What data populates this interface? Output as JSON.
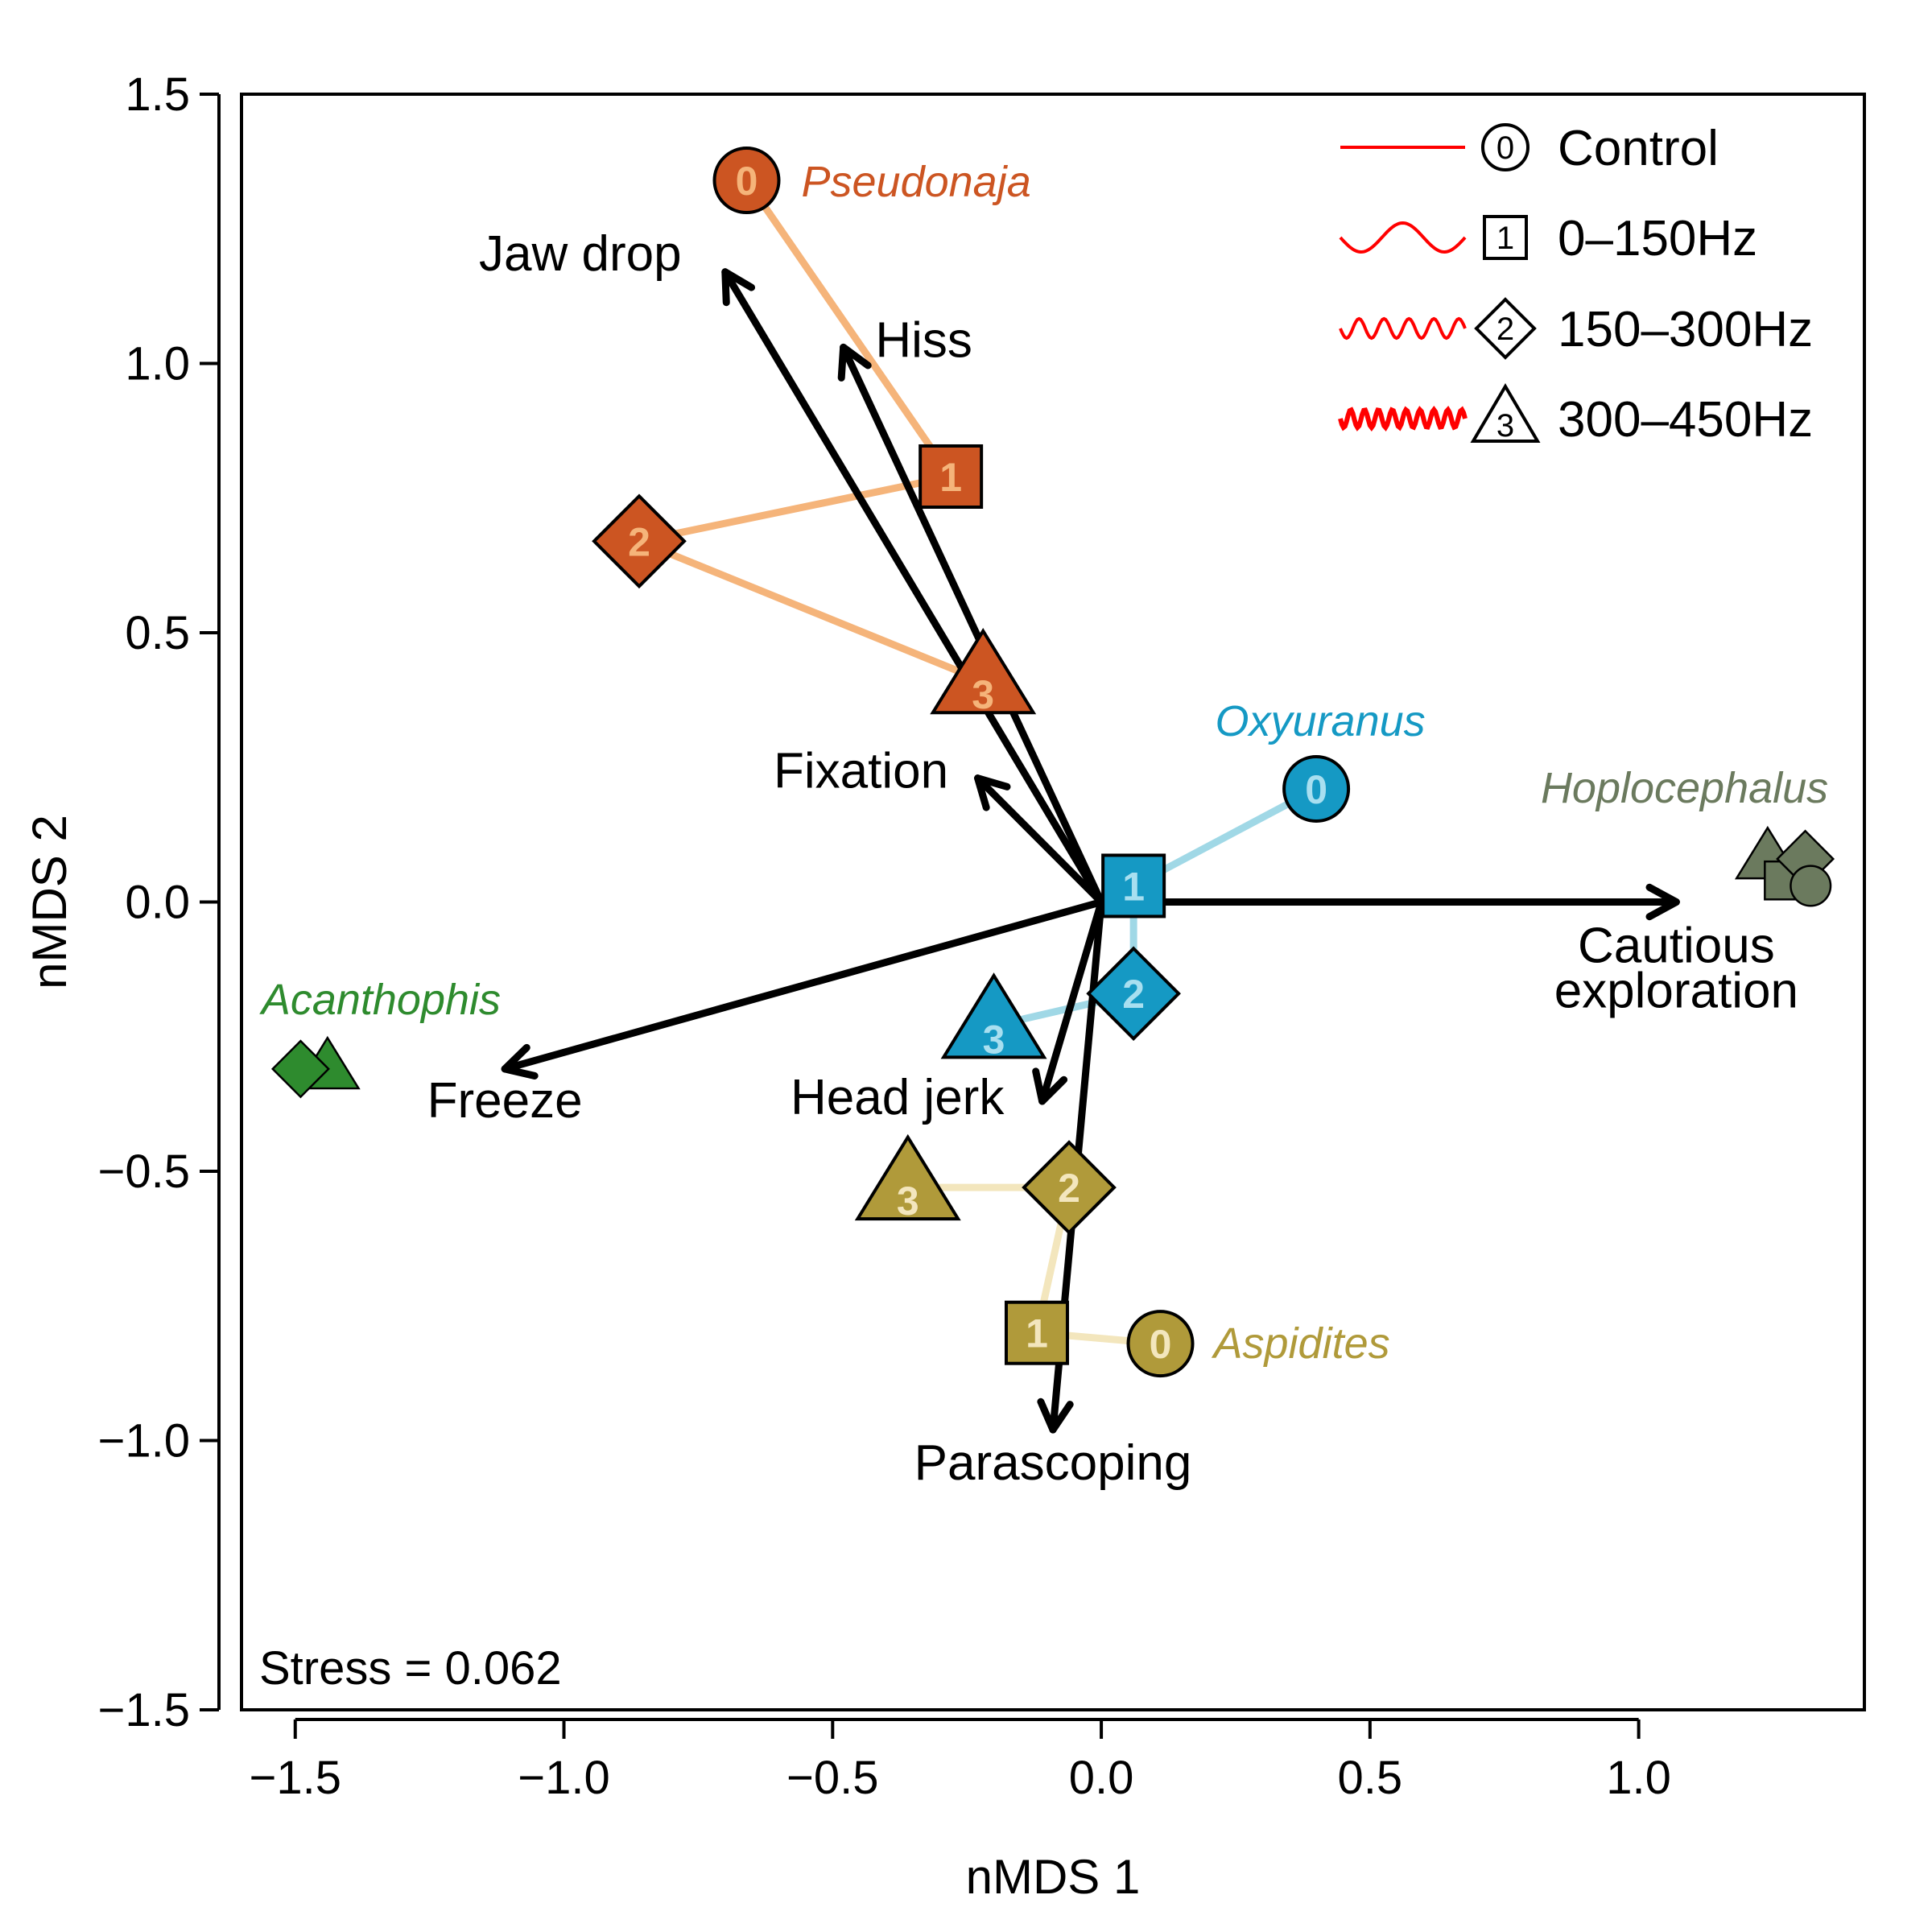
{
  "chart_data": {
    "type": "scatter",
    "xlabel": "nMDS 1",
    "ylabel": "nMDS 2",
    "xlim": [
      -1.6,
      1.42
    ],
    "ylim": [
      -1.5,
      1.5
    ],
    "xticks": [
      -1.5,
      -1.0,
      -0.5,
      0.0,
      0.5,
      1.0
    ],
    "xtick_labels": [
      "−1.5",
      "−1.0",
      "−0.5",
      "0.0",
      "0.5",
      "1.0"
    ],
    "yticks": [
      -1.5,
      -1.0,
      -0.5,
      0.0,
      0.5,
      1.0,
      1.5
    ],
    "ytick_labels": [
      "−1.5",
      "−1.0",
      "−0.5",
      "0.0",
      "0.5",
      "1.0",
      "1.5"
    ],
    "grid": false,
    "stress_text": "Stress = 0.062",
    "legend": {
      "position": "top-right",
      "entries": [
        {
          "label": "Control",
          "shape": "circle",
          "code": "0",
          "line": "straight"
        },
        {
          "label": "0–150Hz",
          "shape": "square",
          "code": "1",
          "line": "low-wave"
        },
        {
          "label": "150–300Hz",
          "shape": "diamond",
          "code": "2",
          "line": "mid-wave"
        },
        {
          "label": "300–450Hz",
          "shape": "triangle",
          "code": "3",
          "line": "high-wave"
        }
      ],
      "line_color": "#ff0000"
    },
    "vectors": [
      {
        "label": "Jaw drop",
        "x": -0.7,
        "y": 1.17
      },
      {
        "label": "Hiss",
        "x": -0.48,
        "y": 1.03
      },
      {
        "label": "Fixation",
        "x": -0.23,
        "y": 0.23
      },
      {
        "label": "Cautious",
        "label2": "exploration",
        "x": 1.07,
        "y": 0.0
      },
      {
        "label": "Freeze",
        "x": -1.11,
        "y": -0.31
      },
      {
        "label": "Head jerk",
        "x": -0.11,
        "y": -0.37
      },
      {
        "label": "Parascoping",
        "x": -0.09,
        "y": -0.98
      }
    ],
    "series": [
      {
        "name": "Pseudonaja",
        "fill": "#cc5522",
        "line": "#f5b47a",
        "num_color": "#f5b47a",
        "points": [
          {
            "code": "0",
            "x": -0.66,
            "y": 1.34
          },
          {
            "code": "1",
            "x": -0.28,
            "y": 0.79
          },
          {
            "code": "2",
            "x": -0.86,
            "y": 0.67
          },
          {
            "code": "3",
            "x": -0.22,
            "y": 0.41
          }
        ],
        "path": [
          "0",
          "1",
          "2",
          "3"
        ]
      },
      {
        "name": "Oxyuranus",
        "fill": "#1599c4",
        "line": "#a0d8e6",
        "num_color": "#a8dff0",
        "points": [
          {
            "code": "0",
            "x": 0.4,
            "y": 0.21
          },
          {
            "code": "1",
            "x": 0.06,
            "y": 0.03
          },
          {
            "code": "2",
            "x": 0.06,
            "y": -0.17
          },
          {
            "code": "3",
            "x": -0.2,
            "y": -0.23
          }
        ],
        "path": [
          "0",
          "1",
          "2",
          "3"
        ]
      },
      {
        "name": "Aspidites",
        "fill": "#b09a3a",
        "line": "#f3e6bd",
        "num_color": "#f3e6bd",
        "points": [
          {
            "code": "0",
            "x": 0.11,
            "y": -0.82
          },
          {
            "code": "1",
            "x": -0.12,
            "y": -0.8
          },
          {
            "code": "2",
            "x": -0.06,
            "y": -0.53
          },
          {
            "code": "3",
            "x": -0.36,
            "y": -0.53
          }
        ],
        "path": [
          "0",
          "1",
          "2",
          "3"
        ]
      },
      {
        "name": "Hoplocephalus",
        "fill": "#6b7a5e",
        "line": null,
        "num_color": null,
        "points": [
          {
            "code": "0",
            "x": 1.32,
            "y": 0.03
          },
          {
            "code": "1",
            "x": 1.27,
            "y": 0.04
          },
          {
            "code": "2",
            "x": 1.31,
            "y": 0.08
          },
          {
            "code": "3",
            "x": 1.24,
            "y": 0.08
          }
        ],
        "path": []
      },
      {
        "name": "Acanthophis",
        "fill": "#2e8b2e",
        "line": null,
        "num_color": null,
        "points": [
          {
            "code": "2",
            "x": -1.49,
            "y": -0.31
          },
          {
            "code": "3",
            "x": -1.44,
            "y": -0.31
          }
        ],
        "path": []
      }
    ]
  }
}
